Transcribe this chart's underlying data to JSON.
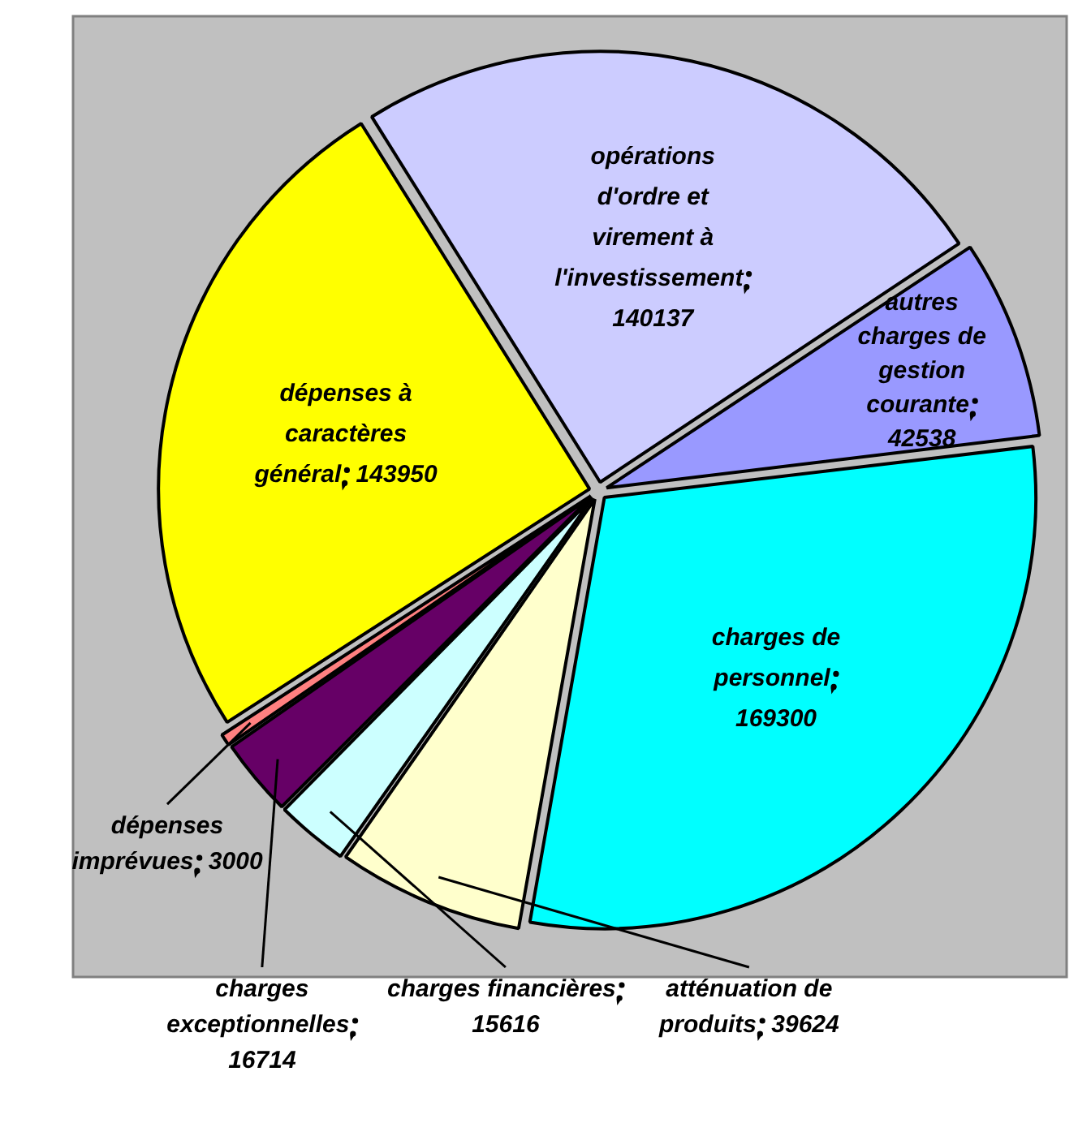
{
  "chart_data": {
    "type": "pie",
    "categories": [
      "opérations d'ordre et virement à l'investissement",
      "autres charges de gestion courante",
      "charges de personnel",
      "atténuation de produits",
      "charges financières",
      "charges exceptionnelles",
      "dépenses imprévues",
      "dépenses à caractères général"
    ],
    "values": [
      140137,
      42538,
      169300,
      39624,
      15616,
      16714,
      3000,
      143950
    ],
    "colors": [
      "#ccccff",
      "#9999ff",
      "#00ffff",
      "#ffffcc",
      "#ccffff",
      "#660066",
      "#ff8080",
      "#ffff00"
    ],
    "data_labels": true,
    "legend": false
  }
}
